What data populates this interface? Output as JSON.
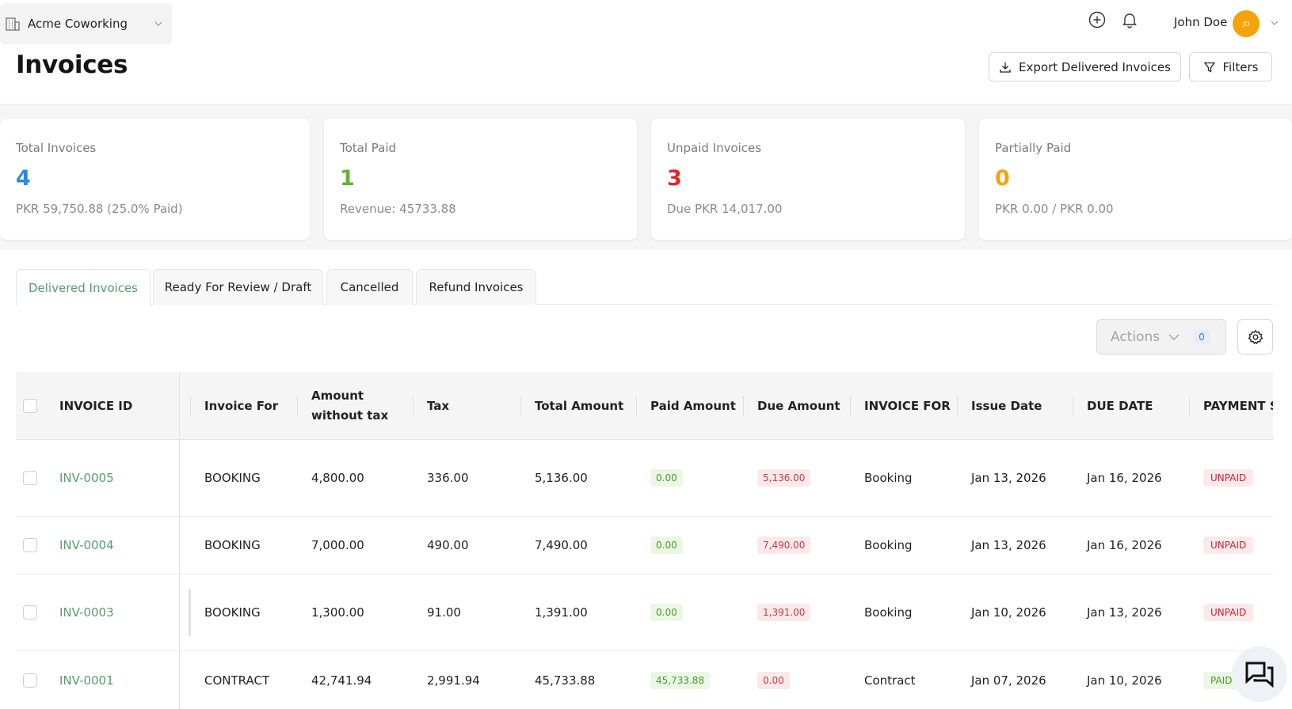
{
  "header": {
    "org_name": "Acme Coworking",
    "page_title": "Invoices",
    "user_name": "John Doe",
    "avatar_initials": "JD",
    "export_label": "Export Delivered Invoices",
    "filters_label": "Filters"
  },
  "stats": [
    {
      "label": "Total Invoices",
      "value": "4",
      "sub": "PKR 59,750.88 (25.0% Paid)",
      "color": "#2f88e0"
    },
    {
      "label": "Total Paid",
      "value": "1",
      "sub": "Revenue: 45733.88",
      "color": "#5cb531"
    },
    {
      "label": "Unpaid Invoices",
      "value": "3",
      "sub": "Due PKR 14,017.00",
      "color": "#e0252b"
    },
    {
      "label": "Partially Paid",
      "value": "0",
      "sub": "PKR 0.00 / PKR 0.00",
      "color": "#f5a30a"
    }
  ],
  "tabs": [
    "Delivered Invoices",
    "Ready For Review / Draft",
    "Cancelled",
    "Refund Invoices"
  ],
  "toolbar": {
    "actions_label": "Actions",
    "selected_count": "0"
  },
  "table": {
    "columns": [
      "INVOICE ID",
      "Invoice For",
      "Amount without tax",
      "Tax",
      "Total Amount",
      "Paid Amount",
      "Due Amount",
      "INVOICE FOR",
      "Issue Date",
      "DUE DATE",
      "PAYMENT STATUS"
    ],
    "rows": [
      {
        "id": "INV-0005",
        "invoice_for": "BOOKING",
        "amount": "4,800.00",
        "tax": "336.00",
        "total": "5,136.00",
        "paid": "0.00",
        "due": "5,136.00",
        "invoice_for_2": "Booking",
        "issue": "Jan 13, 2026",
        "due_date": "Jan 16, 2026",
        "status": "UNPAID"
      },
      {
        "id": "INV-0004",
        "invoice_for": "BOOKING",
        "amount": "7,000.00",
        "tax": "490.00",
        "total": "7,490.00",
        "paid": "0.00",
        "due": "7,490.00",
        "invoice_for_2": "Booking",
        "issue": "Jan 13, 2026",
        "due_date": "Jan 16, 2026",
        "status": "UNPAID"
      },
      {
        "id": "INV-0003",
        "invoice_for": "BOOKING",
        "amount": "1,300.00",
        "tax": "91.00",
        "total": "1,391.00",
        "paid": "0.00",
        "due": "1,391.00",
        "invoice_for_2": "Booking",
        "issue": "Jan 10, 2026",
        "due_date": "Jan 13, 2026",
        "status": "UNPAID"
      },
      {
        "id": "INV-0001",
        "invoice_for": "CONTRACT",
        "amount": "42,741.94",
        "tax": "2,991.94",
        "total": "45,733.88",
        "paid": "45,733.88",
        "due": "0.00",
        "invoice_for_2": "Contract",
        "issue": "Jan 07, 2026",
        "due_date": "Jan 10, 2026",
        "status": "PAID"
      }
    ]
  }
}
